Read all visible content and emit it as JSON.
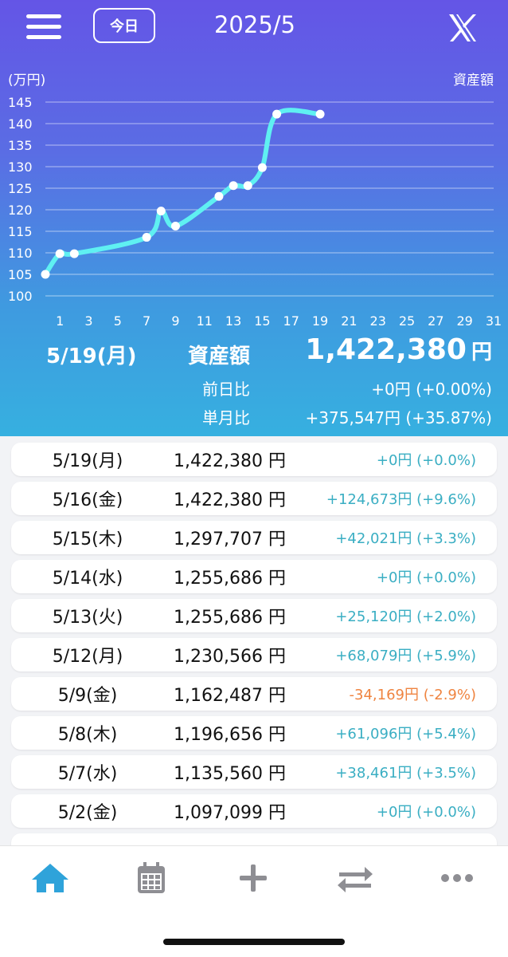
{
  "header": {
    "today_label": "今日",
    "month": "2025/5"
  },
  "chart_data": {
    "type": "line",
    "title": "",
    "ylabel": "(万円)",
    "legend": "資産額",
    "x_ticks": [
      "1",
      "3",
      "5",
      "7",
      "9",
      "11",
      "13",
      "15",
      "17",
      "19",
      "21",
      "23",
      "25",
      "27",
      "29",
      "31"
    ],
    "y_ticks": [
      "100",
      "105",
      "110",
      "115",
      "120",
      "125",
      "130",
      "135",
      "140",
      "145"
    ],
    "xlim": [
      0,
      31
    ],
    "ylim": [
      100,
      145
    ],
    "grid": true,
    "color": "#5ff0f2",
    "x": [
      0,
      1,
      2,
      7,
      8,
      9,
      12,
      13,
      14,
      15,
      16,
      19
    ],
    "y": [
      105.0,
      109.8,
      109.8,
      113.6,
      119.7,
      116.2,
      123.1,
      125.6,
      125.6,
      129.8,
      142.2,
      142.2
    ]
  },
  "summary": {
    "date": "5/19(月)",
    "label": "資産額",
    "total": "1,422,380",
    "unit": "円",
    "day_label": "前日比",
    "day_value": "+0円 (+0.00%)",
    "month_label": "単月比",
    "month_value": "+375,547円 (+35.87%)"
  },
  "colors": {
    "positive": "#3aaec3",
    "negative": "#ef8440",
    "accent": "#2fa3da",
    "icon_gray": "#8e8e93"
  },
  "rows": [
    {
      "date": "5/19(月)",
      "amount": "1,422,380 円",
      "diff": "+0円 (+0.0%)",
      "neg": false
    },
    {
      "date": "5/16(金)",
      "amount": "1,422,380 円",
      "diff": "+124,673円 (+9.6%)",
      "neg": false
    },
    {
      "date": "5/15(木)",
      "amount": "1,297,707 円",
      "diff": "+42,021円 (+3.3%)",
      "neg": false
    },
    {
      "date": "5/14(水)",
      "amount": "1,255,686 円",
      "diff": "+0円 (+0.0%)",
      "neg": false
    },
    {
      "date": "5/13(火)",
      "amount": "1,255,686 円",
      "diff": "+25,120円 (+2.0%)",
      "neg": false
    },
    {
      "date": "5/12(月)",
      "amount": "1,230,566 円",
      "diff": "+68,079円 (+5.9%)",
      "neg": false
    },
    {
      "date": "5/9(金)",
      "amount": "1,162,487 円",
      "diff": "-34,169円 (-2.9%)",
      "neg": true
    },
    {
      "date": "5/8(木)",
      "amount": "1,196,656 円",
      "diff": "+61,096円 (+5.4%)",
      "neg": false
    },
    {
      "date": "5/7(水)",
      "amount": "1,135,560 円",
      "diff": "+38,461円 (+3.5%)",
      "neg": false
    },
    {
      "date": "5/2(金)",
      "amount": "1,097,099 円",
      "diff": "+0円 (+0.0%)",
      "neg": false
    }
  ],
  "tabs": [
    {
      "icon": "home-icon",
      "active": true
    },
    {
      "icon": "calendar-icon",
      "active": false
    },
    {
      "icon": "plus-icon",
      "active": false
    },
    {
      "icon": "transfer-icon",
      "active": false
    },
    {
      "icon": "more-icon",
      "active": false
    }
  ]
}
